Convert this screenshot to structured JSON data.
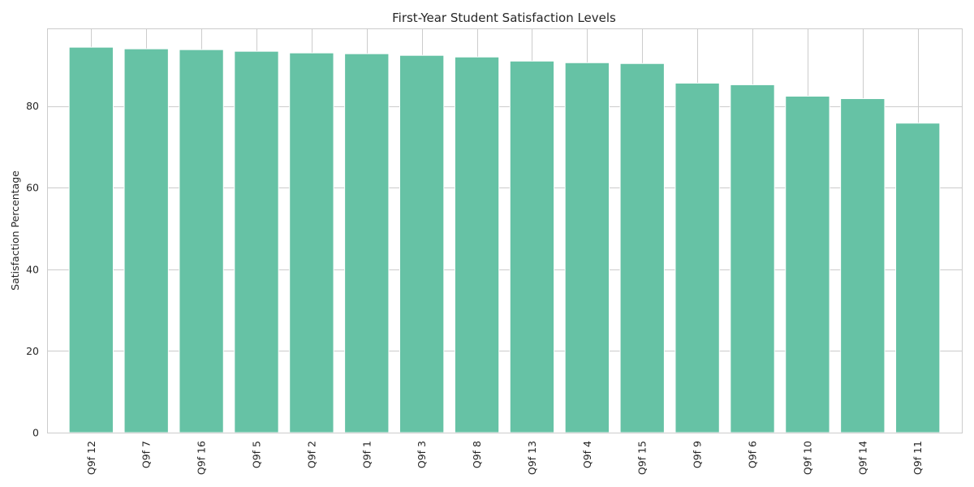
{
  "chart_data": {
    "type": "bar",
    "title": "First-Year Student Satisfaction Levels",
    "xlabel": "",
    "ylabel": "Satisfaction Percentage",
    "categories": [
      "Q9f 12",
      "Q9f 7",
      "Q9f 16",
      "Q9f 5",
      "Q9f 2",
      "Q9f 1",
      "Q9f 3",
      "Q9f 8",
      "Q9f 13",
      "Q9f 4",
      "Q9f 15",
      "Q9f 9",
      "Q9f 6",
      "Q9f 10",
      "Q9f 14",
      "Q9f 11"
    ],
    "values": [
      94.4,
      94.0,
      93.8,
      93.4,
      93.0,
      92.8,
      92.4,
      92.0,
      91.0,
      90.6,
      90.4,
      85.6,
      85.2,
      82.4,
      81.8,
      75.8
    ],
    "ylim": [
      0,
      99
    ],
    "yticks": [
      0,
      20,
      40,
      60,
      80
    ],
    "grid": true,
    "bar_color": "#66c2a5",
    "legend": "none"
  }
}
